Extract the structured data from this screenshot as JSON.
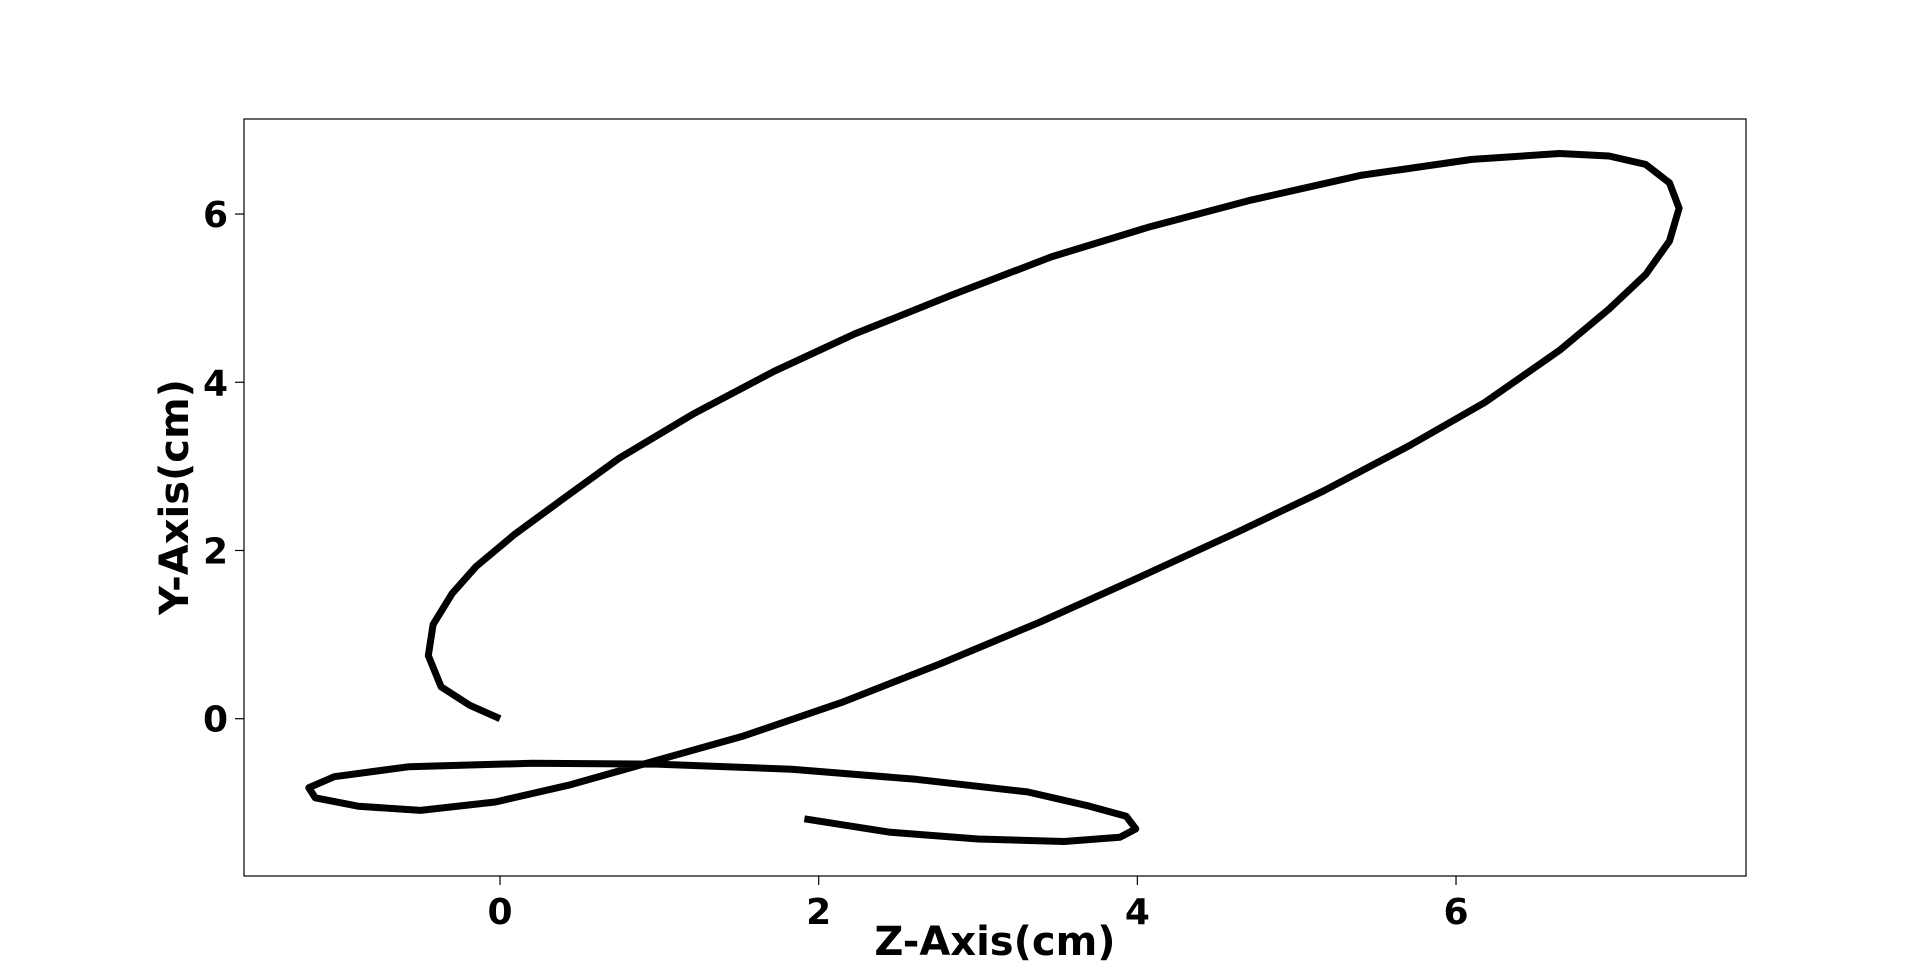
{
  "chart_data": {
    "type": "line",
    "xlabel": "Z-Axis(cm)",
    "ylabel": "Y-Axis(cm)",
    "x": [
      0,
      -0.19,
      -0.37,
      -0.45,
      -0.42,
      -0.3,
      -0.15,
      0.09,
      0.4,
      0.75,
      1.21,
      1.72,
      2.22,
      2.84,
      3.46,
      4.08,
      4.7,
      5.4,
      6.1,
      6.65,
      6.96,
      7.19,
      7.34,
      7.4,
      7.34,
      7.19,
      6.96,
      6.65,
      6.18,
      5.71,
      5.17,
      4.63,
      4.01,
      3.39,
      2.76,
      2.14,
      1.52,
      0.9,
      0.43,
      -0.03,
      -0.5,
      -0.89,
      -1.16,
      -1.2,
      -1.04,
      -0.57,
      0.2,
      0.98,
      1.83,
      2.61,
      3.31,
      3.7,
      3.93,
      3.99,
      3.89,
      3.54,
      3.0,
      2.45,
      1.91
    ],
    "series": [
      {
        "color": "#000000",
        "values": [
          0,
          0.16,
          0.38,
          0.75,
          1.12,
          1.49,
          1.81,
          2.19,
          2.62,
          3.1,
          3.62,
          4.13,
          4.57,
          5.04,
          5.49,
          5.85,
          6.16,
          6.46,
          6.65,
          6.72,
          6.69,
          6.59,
          6.37,
          6.07,
          5.68,
          5.28,
          4.87,
          4.38,
          3.76,
          3.25,
          2.71,
          2.22,
          1.68,
          1.15,
          0.65,
          0.19,
          -0.21,
          -0.54,
          -0.79,
          -0.99,
          -1.09,
          -1.04,
          -0.94,
          -0.82,
          -0.69,
          -0.57,
          -0.53,
          -0.54,
          -0.6,
          -0.72,
          -0.87,
          -1.04,
          -1.16,
          -1.31,
          -1.41,
          -1.46,
          -1.43,
          -1.35,
          -1.19
        ]
      }
    ],
    "xlim": [
      -1.607,
      7.82
    ],
    "ylim": [
      -1.87,
      7.13
    ],
    "xticks": [
      0,
      2,
      4,
      6
    ],
    "yticks": [
      0,
      2,
      4,
      6
    ]
  }
}
